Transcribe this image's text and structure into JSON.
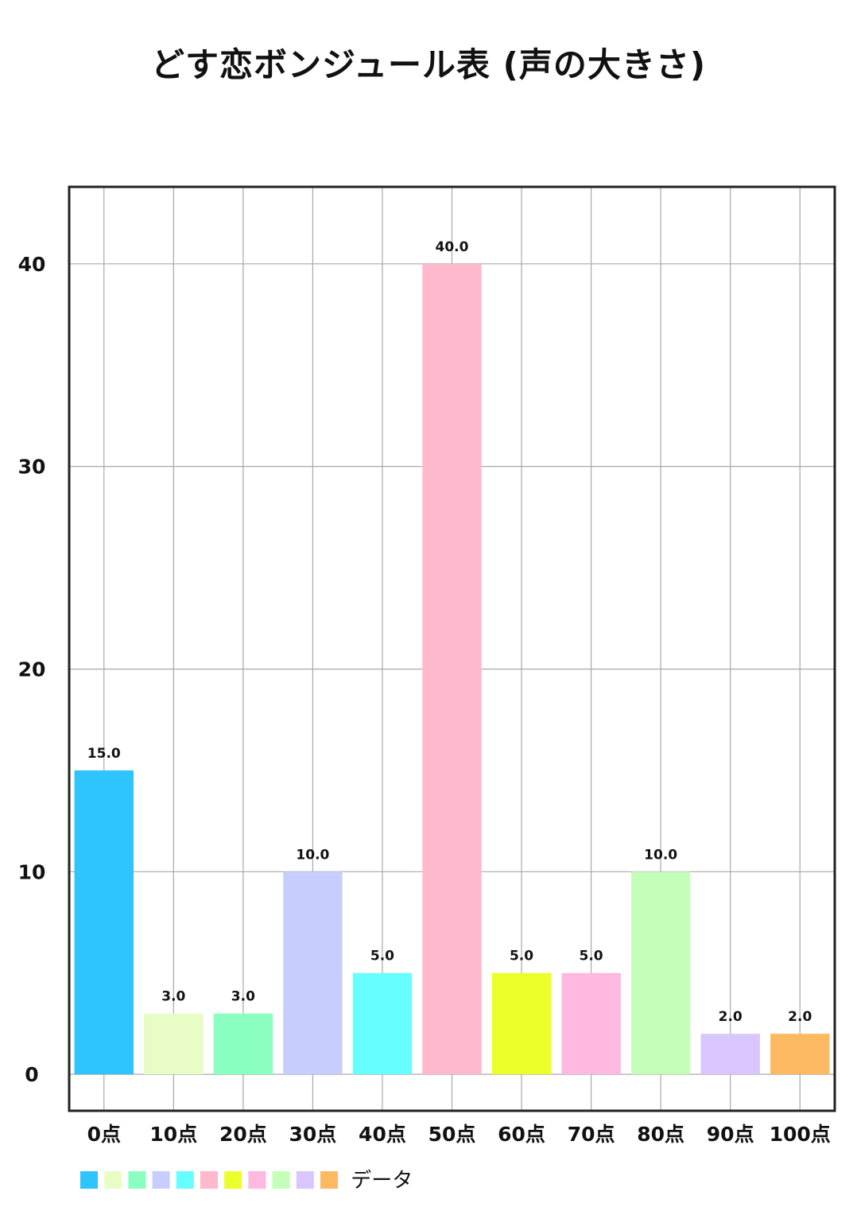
{
  "chart_data": {
    "type": "bar",
    "title": "どす恋ボンジュール表 (声の大きさ)",
    "categories": [
      "0点",
      "10点",
      "20点",
      "30点",
      "40点",
      "50点",
      "60点",
      "70点",
      "80点",
      "90点",
      "100点"
    ],
    "series": [
      {
        "name": "データ",
        "values": [
          15.0,
          3.0,
          3.0,
          10.0,
          5.0,
          40.0,
          5.0,
          5.0,
          10.0,
          2.0,
          2.0
        ],
        "data_labels": [
          "15.0",
          "3.0",
          "3.0",
          "10.0",
          "5.0",
          "40.0",
          "5.0",
          "5.0",
          "10.0",
          "2.0",
          "2.0"
        ],
        "colors": [
          "#2ec4fc",
          "#e8fdc6",
          "#8affc0",
          "#c7cefe",
          "#66fefe",
          "#feb9cd",
          "#ebff2a",
          "#fdb9e0",
          "#c4ffb9",
          "#d9c6fe",
          "#fdb862"
        ]
      }
    ],
    "yticks": [
      0,
      10,
      20,
      30,
      40
    ],
    "ylim": [
      -1.8,
      43.8
    ],
    "grid": true,
    "legend": "bottom-left"
  }
}
